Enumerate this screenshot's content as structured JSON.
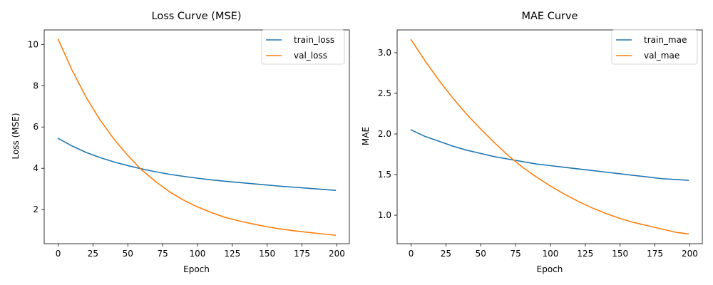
{
  "chart_data": [
    {
      "type": "line",
      "title": "Loss Curve (MSE)",
      "xlabel": "Epoch",
      "ylabel": "Loss (MSE)",
      "xlim": [
        -10,
        209
      ],
      "ylim": [
        0.35,
        10.7
      ],
      "xticks": [
        0,
        25,
        50,
        75,
        100,
        125,
        150,
        175,
        200
      ],
      "yticks": [
        2,
        4,
        6,
        8,
        10
      ],
      "legend": "top-right",
      "x": [
        0,
        10,
        20,
        30,
        40,
        50,
        60,
        70,
        80,
        90,
        100,
        110,
        120,
        130,
        140,
        150,
        160,
        170,
        180,
        190,
        199
      ],
      "series": [
        {
          "name": "train_loss",
          "color": "#1f77b4",
          "values": [
            5.45,
            5.08,
            4.77,
            4.52,
            4.31,
            4.13,
            3.97,
            3.83,
            3.71,
            3.61,
            3.52,
            3.44,
            3.37,
            3.31,
            3.25,
            3.19,
            3.13,
            3.08,
            3.03,
            2.98,
            2.93
          ]
        },
        {
          "name": "val_loss",
          "color": "#ff7f0e",
          "values": [
            10.25,
            8.75,
            7.45,
            6.35,
            5.42,
            4.62,
            3.92,
            3.35,
            2.86,
            2.46,
            2.13,
            1.86,
            1.62,
            1.45,
            1.3,
            1.17,
            1.06,
            0.97,
            0.89,
            0.82,
            0.76
          ]
        }
      ]
    },
    {
      "type": "line",
      "title": "MAE Curve",
      "xlabel": "Epoch",
      "ylabel": "MAE",
      "xlim": [
        -10,
        209
      ],
      "ylim": [
        0.65,
        3.28
      ],
      "xticks": [
        0,
        25,
        50,
        75,
        100,
        125,
        150,
        175,
        200
      ],
      "yticks": [
        1.0,
        1.5,
        2.0,
        2.5,
        3.0
      ],
      "ytick_labels": [
        "1.0",
        "1.5",
        "2.0",
        "2.5",
        "3.0"
      ],
      "legend": "top-right",
      "x": [
        0,
        10,
        20,
        30,
        40,
        50,
        60,
        70,
        80,
        90,
        100,
        110,
        120,
        130,
        140,
        150,
        160,
        170,
        180,
        190,
        199
      ],
      "series": [
        {
          "name": "train_mae",
          "color": "#1f77b4",
          "values": [
            2.05,
            1.97,
            1.91,
            1.85,
            1.8,
            1.76,
            1.72,
            1.69,
            1.66,
            1.63,
            1.61,
            1.59,
            1.57,
            1.55,
            1.53,
            1.51,
            1.49,
            1.47,
            1.45,
            1.44,
            1.43
          ]
        },
        {
          "name": "val_mae",
          "color": "#ff7f0e",
          "values": [
            3.16,
            2.9,
            2.66,
            2.44,
            2.24,
            2.06,
            1.89,
            1.73,
            1.59,
            1.47,
            1.36,
            1.26,
            1.17,
            1.09,
            1.02,
            0.96,
            0.91,
            0.87,
            0.83,
            0.79,
            0.77
          ]
        }
      ]
    }
  ]
}
